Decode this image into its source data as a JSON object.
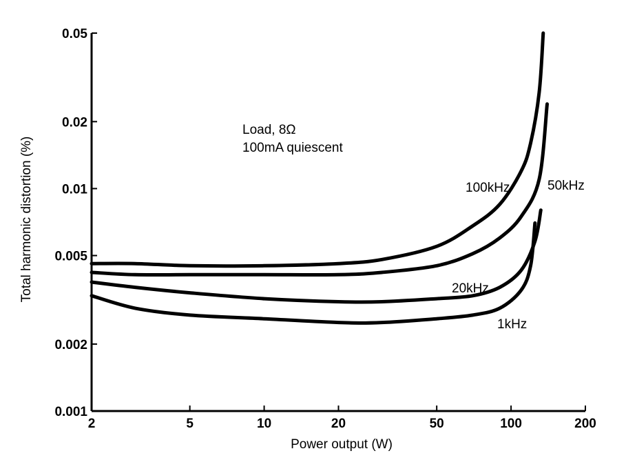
{
  "chart_data": {
    "type": "line",
    "title": "",
    "xlabel": "Power output (W)",
    "ylabel": "Total harmonic distortion (%)",
    "xscale": "log",
    "yscale": "log",
    "xlim": [
      2,
      200
    ],
    "ylim": [
      0.001,
      0.05
    ],
    "xticks": [
      2,
      5,
      10,
      20,
      50,
      100,
      200
    ],
    "xtick_labels": [
      "2",
      "5",
      "10",
      "20",
      "50",
      "100",
      "200"
    ],
    "yticks": [
      0.001,
      0.002,
      0.005,
      0.01,
      0.02,
      0.05
    ],
    "ytick_labels": [
      "0.001",
      "0.002",
      "0.005",
      "0.01",
      "0.02",
      "0.05"
    ],
    "annotation_lines": [
      "Load, 8Ω",
      "100mA quiescent"
    ],
    "series": [
      {
        "name": "100kHz",
        "x": [
          2,
          3,
          5,
          10,
          20,
          30,
          50,
          70,
          90,
          110,
          120,
          130,
          135
        ],
        "y": [
          0.0046,
          0.0046,
          0.0045,
          0.0045,
          0.0046,
          0.0048,
          0.0055,
          0.0068,
          0.0085,
          0.012,
          0.016,
          0.027,
          0.05
        ]
      },
      {
        "name": "50kHz",
        "x": [
          2,
          3,
          5,
          10,
          20,
          30,
          50,
          70,
          90,
          110,
          130,
          140
        ],
        "y": [
          0.0042,
          0.0041,
          0.0041,
          0.0041,
          0.0041,
          0.0042,
          0.0045,
          0.0051,
          0.006,
          0.0075,
          0.011,
          0.024
        ]
      },
      {
        "name": "20kHz",
        "x": [
          2,
          3,
          5,
          10,
          20,
          30,
          50,
          70,
          90,
          110,
          125,
          132
        ],
        "y": [
          0.0038,
          0.0036,
          0.0034,
          0.0032,
          0.0031,
          0.0031,
          0.0032,
          0.0033,
          0.0036,
          0.0043,
          0.0058,
          0.008
        ]
      },
      {
        "name": "1kHz",
        "x": [
          2,
          3,
          5,
          10,
          20,
          30,
          50,
          70,
          90,
          110,
          120,
          125
        ],
        "y": [
          0.0033,
          0.0029,
          0.0027,
          0.0026,
          0.0025,
          0.0025,
          0.0026,
          0.0027,
          0.0029,
          0.0035,
          0.0045,
          0.007
        ]
      }
    ]
  }
}
